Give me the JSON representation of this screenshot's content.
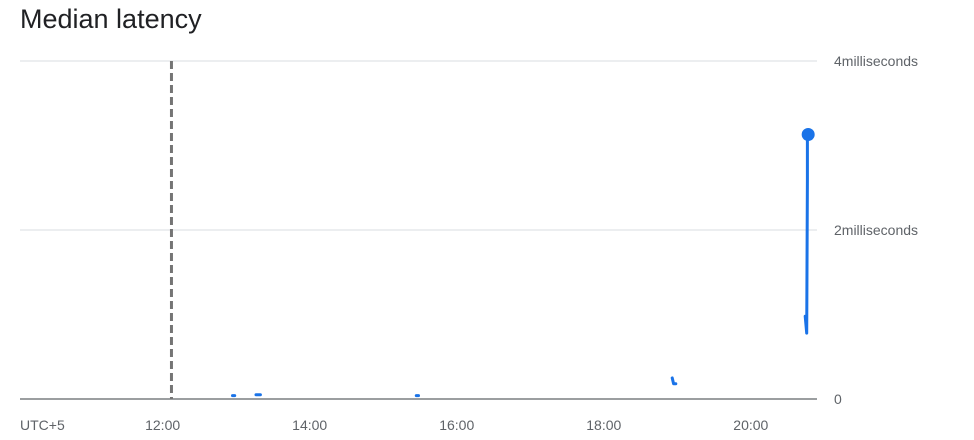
{
  "title": "Median latency",
  "timezone_label": "UTC+5",
  "colors": {
    "series": "#1a73e8",
    "gridline": "#dadce0",
    "baseline": "#5f6368",
    "cursor": "#757575",
    "text": "#5f6368"
  },
  "chart_data": {
    "type": "line",
    "title": "Median latency",
    "xlabel": "",
    "ylabel": "",
    "x_axis": {
      "unit": "hours",
      "range": [
        10.06,
        20.9
      ],
      "ticks": [
        {
          "value": 12,
          "label": "12:00"
        },
        {
          "value": 14,
          "label": "14:00"
        },
        {
          "value": 16,
          "label": "16:00"
        },
        {
          "value": 18,
          "label": "18:00"
        },
        {
          "value": 20,
          "label": "20:00"
        }
      ]
    },
    "y_axis": {
      "unit": "milliseconds",
      "range": [
        0,
        4
      ],
      "position": "right",
      "ticks": [
        {
          "value": 0,
          "label": "0"
        },
        {
          "value": 2,
          "label": "2milliseconds"
        },
        {
          "value": 4,
          "label": "4milliseconds"
        }
      ]
    },
    "grid": true,
    "legend": "none",
    "cursor_x": 12.12,
    "series": [
      {
        "segments": [
          [
            [
              12.95,
              0.04
            ],
            [
              12.98,
              0.04
            ]
          ],
          [
            [
              13.27,
              0.05
            ],
            [
              13.33,
              0.05
            ]
          ],
          [
            [
              15.45,
              0.04
            ],
            [
              15.48,
              0.04
            ]
          ],
          [
            [
              18.93,
              0.25
            ],
            [
              18.95,
              0.18
            ],
            [
              18.98,
              0.18
            ]
          ],
          [
            [
              20.74,
              0.98
            ],
            [
              20.76,
              0.78
            ],
            [
              20.77,
              2.6
            ],
            [
              20.77,
              3.15
            ],
            [
              20.78,
              3.13
            ]
          ]
        ],
        "last_point": [
          20.78,
          3.13
        ]
      }
    ]
  }
}
